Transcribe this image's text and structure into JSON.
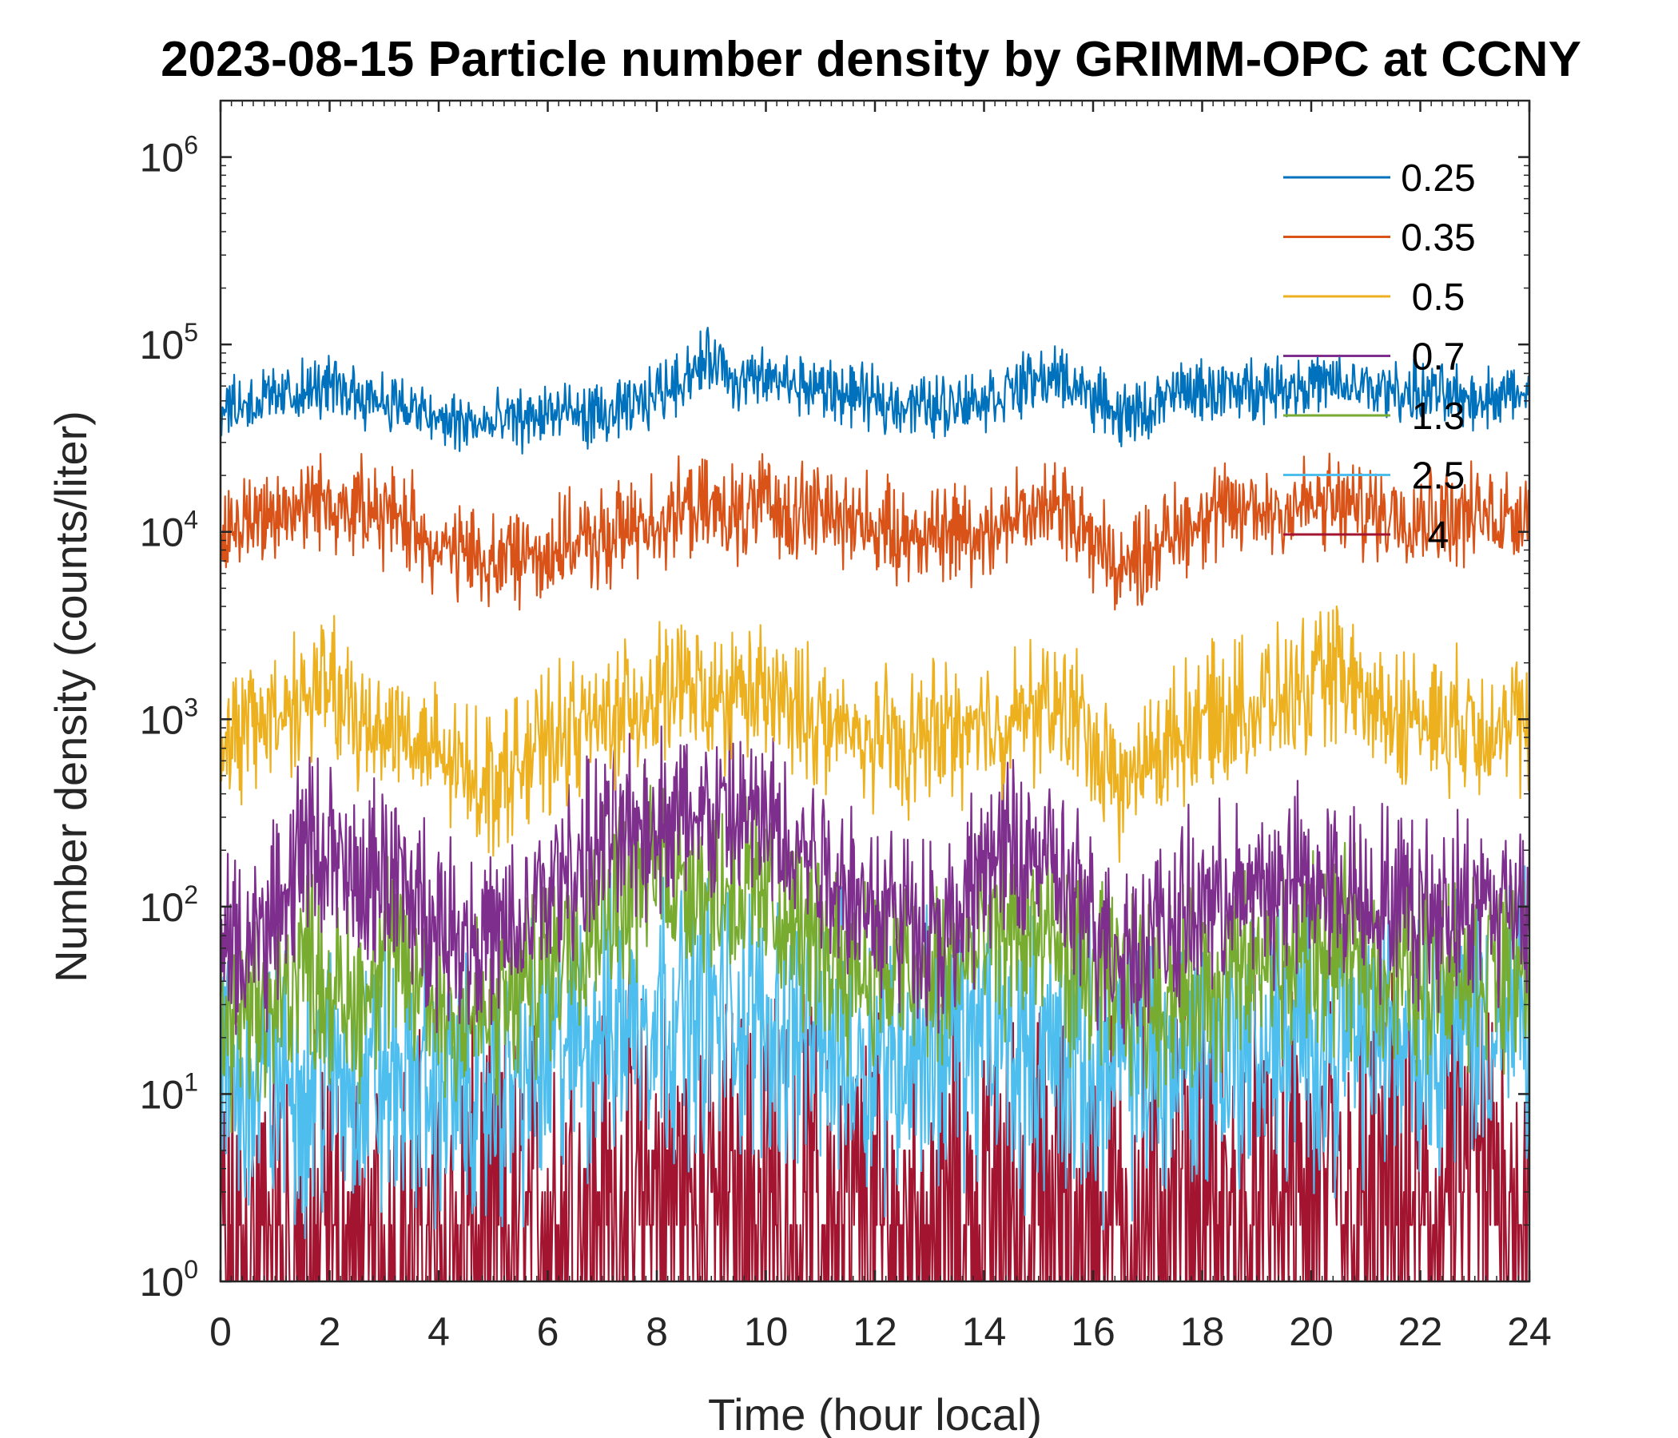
{
  "chart_data": {
    "type": "line",
    "title": "2023-08-15 Particle number density by GRIMM-OPC at CCNY",
    "xlabel": "Time (hour local)",
    "ylabel": "Number density (counts/liter)",
    "xlim": [
      0,
      24
    ],
    "ylim": [
      1,
      2000000
    ],
    "yscale": "log",
    "xticks": [
      0,
      2,
      4,
      6,
      8,
      10,
      12,
      14,
      16,
      18,
      20,
      22,
      24
    ],
    "xtick_labels": [
      "0",
      "2",
      "4",
      "6",
      "8",
      "10",
      "12",
      "14",
      "16",
      "18",
      "20",
      "22",
      "24"
    ],
    "yticks": [
      1,
      10,
      100,
      1000,
      10000,
      100000,
      1000000
    ],
    "ytick_labels": [
      {
        "base": "10",
        "exp": "0"
      },
      {
        "base": "10",
        "exp": "1"
      },
      {
        "base": "10",
        "exp": "2"
      },
      {
        "base": "10",
        "exp": "3"
      },
      {
        "base": "10",
        "exp": "4"
      },
      {
        "base": "10",
        "exp": "5"
      },
      {
        "base": "10",
        "exp": "6"
      }
    ],
    "legend_position": "top-right",
    "series": [
      {
        "name": "0.25",
        "label": "0.25",
        "color": "#0072BD",
        "noise": 0.1,
        "x": [
          0,
          1,
          2,
          3,
          4,
          5,
          6,
          7,
          7.5,
          8,
          8.5,
          9,
          9.5,
          10,
          11,
          12,
          13,
          14,
          15,
          15.5,
          16,
          16.5,
          17,
          17.5,
          18,
          19,
          20,
          21,
          22,
          23,
          24
        ],
        "y": [
          47000,
          52000,
          60000,
          51000,
          39000,
          37000,
          43000,
          41000,
          45000,
          55000,
          68000,
          85000,
          62000,
          65000,
          58000,
          50000,
          47000,
          51000,
          65000,
          66000,
          52000,
          42000,
          44000,
          55000,
          56000,
          58000,
          62000,
          58000,
          55000,
          52000,
          55000
        ]
      },
      {
        "name": "0.35",
        "label": "0.35",
        "color": "#D95319",
        "noise": 0.16,
        "x": [
          0,
          1,
          2,
          3,
          3.5,
          4,
          5,
          6,
          7,
          8,
          9,
          9.5,
          10,
          11,
          12,
          12.5,
          13,
          14,
          15,
          15.5,
          16,
          16.5,
          17,
          17.5,
          18,
          19,
          20,
          21,
          22,
          23,
          24
        ],
        "y": [
          9500,
          13000,
          15000,
          12000,
          11000,
          8000,
          7000,
          8000,
          9000,
          12000,
          13000,
          12000,
          14000,
          13000,
          11000,
          9000,
          10000,
          10500,
          13000,
          14000,
          9000,
          6000,
          8000,
          10000,
          12000,
          13000,
          14000,
          13000,
          12500,
          12000,
          13000
        ]
      },
      {
        "name": "0.5",
        "label": "0.5",
        "color": "#EDB120",
        "noise": 0.22,
        "x": [
          0,
          1,
          2,
          2.5,
          3,
          3.5,
          4,
          5,
          6,
          7,
          8,
          8.5,
          9,
          9.5,
          10,
          11,
          11.5,
          12,
          12.5,
          13,
          14,
          15,
          15.5,
          16,
          16.5,
          17,
          17.5,
          18,
          19,
          20,
          20.5,
          21,
          22,
          23,
          24
        ],
        "y": [
          700,
          1100,
          1500,
          900,
          1000,
          800,
          600,
          480,
          750,
          1000,
          1300,
          1500,
          1200,
          1400,
          1300,
          1000,
          800,
          800,
          700,
          850,
          900,
          1100,
          1200,
          750,
          400,
          600,
          800,
          1000,
          1200,
          1400,
          1800,
          1200,
          1000,
          950,
          900
        ]
      },
      {
        "name": "0.7",
        "label": "0.7",
        "color": "#7E2F8E",
        "noise": 0.3,
        "x": [
          0,
          1,
          1.5,
          2,
          2.5,
          3,
          3.5,
          4,
          5,
          5.5,
          6,
          7,
          8,
          9,
          10,
          11,
          12,
          13,
          13.5,
          14,
          15,
          15.5,
          16,
          16.5,
          17,
          17.5,
          18,
          19,
          20,
          21,
          22,
          23,
          24
        ],
        "y": [
          55,
          80,
          220,
          200,
          110,
          170,
          110,
          80,
          65,
          70,
          120,
          220,
          300,
          300,
          280,
          180,
          100,
          80,
          70,
          180,
          200,
          120,
          80,
          60,
          70,
          80,
          100,
          120,
          140,
          110,
          100,
          100,
          110
        ]
      },
      {
        "name": "1.3",
        "label": "1.3",
        "color": "#77AC30",
        "noise": 0.32,
        "x": [
          0,
          1,
          1.5,
          2,
          2.5,
          3,
          3.5,
          4,
          5,
          6,
          7,
          8,
          9,
          10,
          11,
          12,
          13,
          14,
          14.5,
          15,
          16,
          16.5,
          17,
          18,
          19,
          20,
          21,
          22,
          23,
          24
        ],
        "y": [
          22,
          28,
          60,
          35,
          30,
          60,
          40,
          30,
          25,
          50,
          110,
          160,
          140,
          110,
          60,
          45,
          40,
          60,
          80,
          70,
          40,
          35,
          35,
          35,
          45,
          60,
          50,
          45,
          50,
          45
        ]
      },
      {
        "name": "2.5",
        "label": "2.5",
        "color": "#4DBEEE",
        "noise": 0.45,
        "x": [
          0,
          2,
          4,
          5,
          6,
          7,
          8,
          10,
          12,
          14,
          16,
          18,
          20,
          22,
          24
        ],
        "y": [
          10,
          12,
          11,
          10,
          15,
          22,
          28,
          24,
          16,
          20,
          13,
          16,
          20,
          22,
          25
        ]
      },
      {
        "name": "4",
        "label": "4",
        "color": "#A2142F",
        "noise": 0.7,
        "x": [
          0,
          4,
          6,
          8,
          10,
          12,
          14,
          16,
          18,
          20,
          22,
          23,
          24
        ],
        "y": [
          1.4,
          1.3,
          2.2,
          2.8,
          2.6,
          2.0,
          2.3,
          2.0,
          2.2,
          2.4,
          2.2,
          3.5,
          3.0
        ]
      }
    ]
  }
}
